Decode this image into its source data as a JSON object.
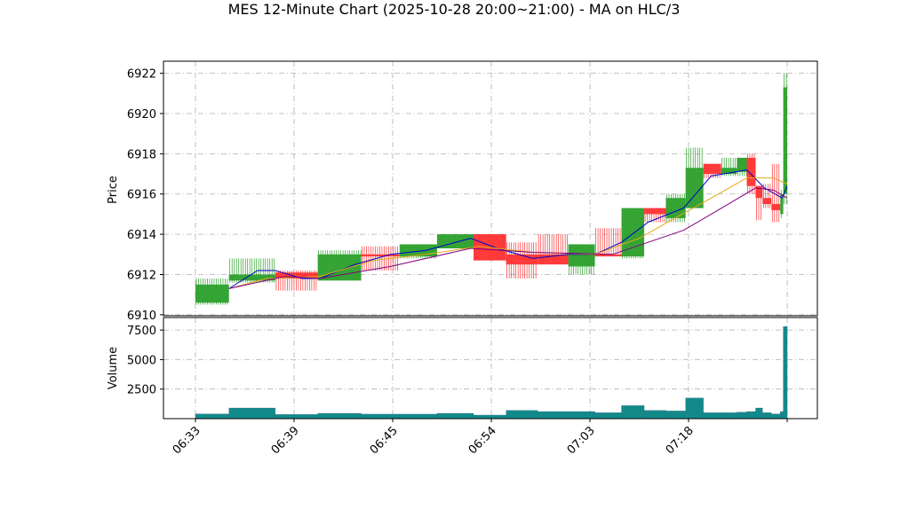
{
  "chart_data": {
    "type": "candlestick",
    "title": "MES 12-Minute Chart (2025-10-28 20:00~21:00) - MA on HLC/3",
    "grid": true,
    "up_color": "#2ca02c",
    "down_color": "#ff3333",
    "xlim": [
      -3.24,
      63.06
    ],
    "xticks": [
      {
        "value": 0,
        "label": "06:33"
      },
      {
        "value": 10,
        "label": "06:39"
      },
      {
        "value": 20,
        "label": "06:45"
      },
      {
        "value": 30,
        "label": "06:54"
      },
      {
        "value": 40,
        "label": "07:03"
      },
      {
        "value": 50,
        "label": "07:18"
      },
      {
        "value": 60,
        "label": null
      }
    ],
    "price": {
      "ylabel": "Price",
      "ylim": [
        6909.95,
        6922.6
      ],
      "yticks": [
        6910,
        6912,
        6914,
        6916,
        6918,
        6920,
        6922
      ],
      "candles": [
        {
          "x0": 0,
          "x1": 3.4,
          "open": 6910.6,
          "high": 6911.8,
          "low": 6910.5,
          "close": 6911.5
        },
        {
          "x0": 3.4,
          "x1": 8.1,
          "open": 6911.7,
          "high": 6912.8,
          "low": 6911.6,
          "close": 6912.0
        },
        {
          "x0": 8.1,
          "x1": 12.4,
          "open": 6912.1,
          "high": 6912.2,
          "low": 6911.2,
          "close": 6911.8
        },
        {
          "x0": 12.4,
          "x1": 16.8,
          "open": 6911.7,
          "high": 6913.2,
          "low": 6911.7,
          "close": 6913.0
        },
        {
          "x0": 16.8,
          "x1": 20.7,
          "open": 6913.0,
          "high": 6913.4,
          "low": 6912.2,
          "close": 6912.9
        },
        {
          "x0": 20.7,
          "x1": 24.5,
          "open": 6912.9,
          "high": 6913.5,
          "low": 6912.8,
          "close": 6913.5
        },
        {
          "x0": 24.5,
          "x1": 28.2,
          "open": 6913.3,
          "high": 6914.0,
          "low": 6913.3,
          "close": 6914.0
        },
        {
          "x0": 28.2,
          "x1": 31.5,
          "open": 6914.0,
          "high": 6914.0,
          "low": 6912.7,
          "close": 6912.7
        },
        {
          "x0": 31.5,
          "x1": 34.7,
          "open": 6913.0,
          "high": 6913.6,
          "low": 6911.8,
          "close": 6912.5
        },
        {
          "x0": 34.7,
          "x1": 37.8,
          "open": 6913.0,
          "high": 6914.0,
          "low": 6912.5,
          "close": 6912.5
        },
        {
          "x0": 37.8,
          "x1": 40.5,
          "open": 6912.4,
          "high": 6913.5,
          "low": 6912.0,
          "close": 6913.5
        },
        {
          "x0": 40.5,
          "x1": 43.2,
          "open": 6913.0,
          "high": 6914.3,
          "low": 6913.0,
          "close": 6912.9
        },
        {
          "x0": 43.2,
          "x1": 45.5,
          "open": 6912.9,
          "high": 6915.3,
          "low": 6912.8,
          "close": 6915.3
        },
        {
          "x0": 45.5,
          "x1": 47.7,
          "open": 6915.3,
          "high": 6915.3,
          "low": 6914.6,
          "close": 6915.0
        },
        {
          "x0": 47.7,
          "x1": 49.7,
          "open": 6914.8,
          "high": 6916.0,
          "low": 6914.6,
          "close": 6915.8
        },
        {
          "x0": 49.7,
          "x1": 51.5,
          "open": 6915.3,
          "high": 6918.3,
          "low": 6915.3,
          "close": 6917.3
        },
        {
          "x0": 51.5,
          "x1": 53.3,
          "open": 6917.5,
          "high": 6917.5,
          "low": 6916.8,
          "close": 6917.0
        },
        {
          "x0": 53.3,
          "x1": 54.9,
          "open": 6917.0,
          "high": 6917.8,
          "low": 6916.9,
          "close": 6917.3
        },
        {
          "x0": 54.9,
          "x1": 55.9,
          "open": 6917.1,
          "high": 6917.8,
          "low": 6916.9,
          "close": 6917.8
        },
        {
          "x0": 55.9,
          "x1": 56.8,
          "open": 6917.8,
          "high": 6918.0,
          "low": 6916.0,
          "close": 6916.4
        },
        {
          "x0": 56.8,
          "x1": 57.5,
          "open": 6916.4,
          "high": 6916.4,
          "low": 6914.7,
          "close": 6915.8
        },
        {
          "x0": 57.5,
          "x1": 58.4,
          "open": 6915.8,
          "high": 6916.5,
          "low": 6915.3,
          "close": 6915.5
        },
        {
          "x0": 58.4,
          "x1": 59.3,
          "open": 6915.5,
          "high": 6917.5,
          "low": 6914.6,
          "close": 6915.2
        },
        {
          "x0": 59.3,
          "x1": 59.6,
          "open": 6915.0,
          "high": 6916.2,
          "low": 6914.8,
          "close": 6916.0
        },
        {
          "x0": 59.6,
          "x1": 60.0,
          "open": 6916.0,
          "high": 6922.0,
          "low": 6915.5,
          "close": 6921.3
        }
      ],
      "series": [
        {
          "color": "#0000cc",
          "x": [
            3.4,
            6.3,
            8.1,
            10.8,
            12.6,
            16.2,
            19.8,
            23.4,
            27.9,
            30.6,
            34.2,
            37.8,
            40.5,
            43.2,
            45.9,
            49.5,
            52.3,
            55.9,
            57.7,
            59.5,
            60.0
          ],
          "values": [
            6911.3,
            6912.2,
            6912.2,
            6911.8,
            6911.8,
            6912.5,
            6913.0,
            6913.2,
            6913.8,
            6913.3,
            6912.8,
            6913.0,
            6913.0,
            6913.6,
            6914.6,
            6915.3,
            6916.9,
            6917.2,
            6916.3,
            6915.8,
            6916.4
          ]
        },
        {
          "color": "#e6a817",
          "x": [
            3.4,
            7.2,
            12.6,
            18.0,
            23.4,
            28.8,
            34.2,
            40.5,
            45.0,
            48.6,
            52.3,
            55.9,
            58.6,
            60.0
          ],
          "values": [
            6911.3,
            6911.8,
            6911.9,
            6912.7,
            6913.0,
            6913.4,
            6913.1,
            6913.0,
            6913.8,
            6914.8,
            6915.8,
            6916.8,
            6916.8,
            6916.5
          ]
        },
        {
          "color": "#800080",
          "x": [
            3.4,
            9.0,
            12.6,
            19.8,
            27.9,
            34.2,
            42.3,
            49.5,
            52.3,
            56.8,
            58.6,
            60.0
          ],
          "values": [
            6911.3,
            6911.9,
            6911.8,
            6912.4,
            6913.3,
            6913.1,
            6913.0,
            6914.2,
            6915.0,
            6916.3,
            6916.2,
            6915.8
          ]
        }
      ]
    },
    "volume": {
      "ylabel": "Volume",
      "color": "#138a8a",
      "ylim": [
        0,
        8560
      ],
      "yticks": [
        2500,
        5000,
        7500
      ],
      "values": [
        400,
        900,
        350,
        450,
        380,
        380,
        450,
        300,
        700,
        600,
        600,
        500,
        1100,
        700,
        650,
        1750,
        500,
        500,
        550,
        600,
        900,
        500,
        400,
        600,
        7800
      ]
    }
  }
}
